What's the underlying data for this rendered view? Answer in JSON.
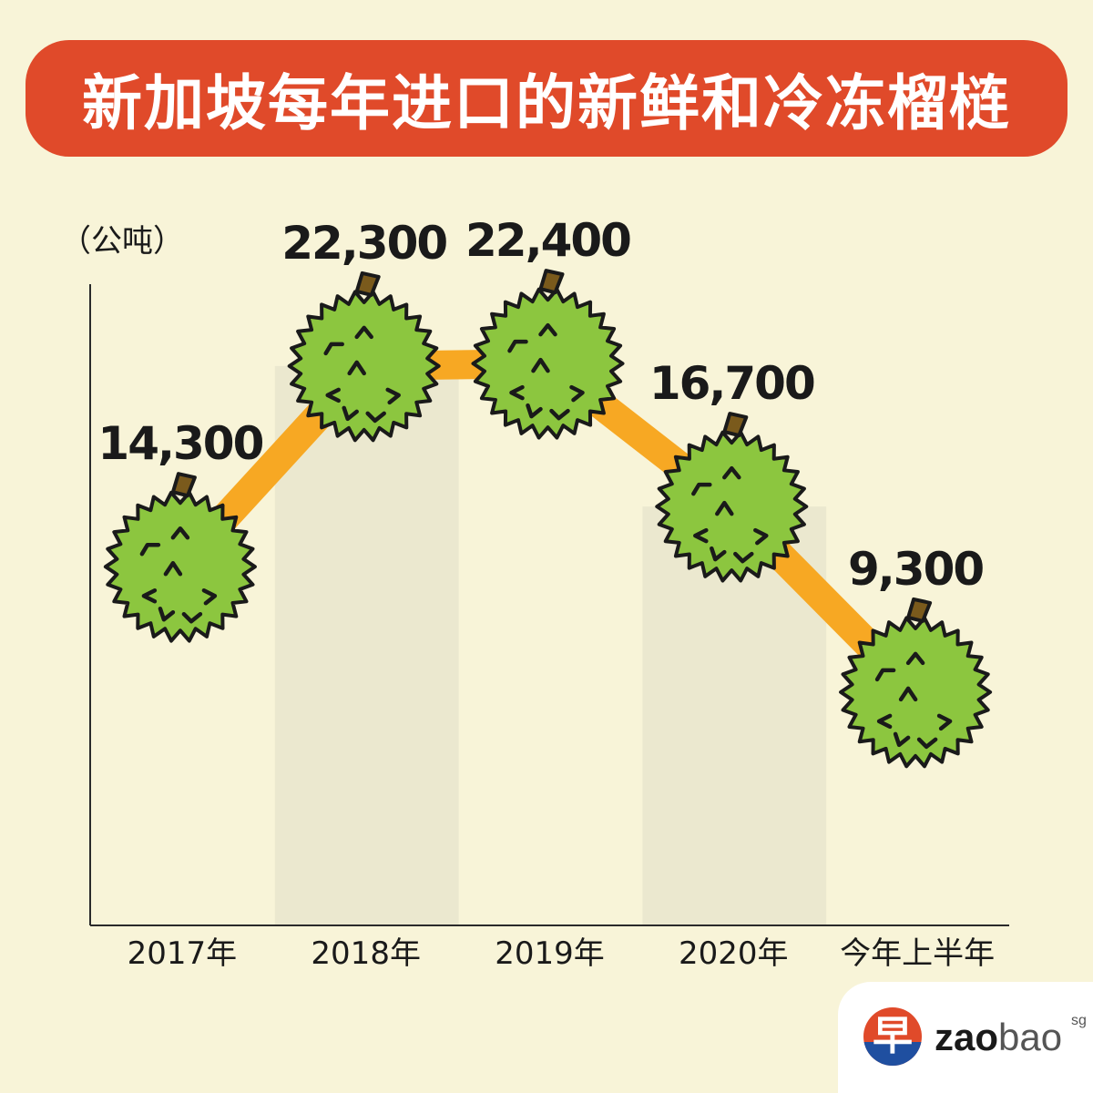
{
  "title": "新加坡每年进口的新鲜和冷冻榴梿",
  "chart_data": {
    "type": "line",
    "title": "新加坡每年进口的新鲜和冷冻榴梿",
    "ylabel": "（公吨）",
    "xlabel": "",
    "categories": [
      "2017年",
      "2018年",
      "2019年",
      "2020年",
      "今年上半年"
    ],
    "values": [
      14300,
      22300,
      22400,
      16700,
      9300
    ],
    "value_labels": [
      "14,300",
      "22,300",
      "22,400",
      "16,700",
      "9,300"
    ],
    "ylim": [
      0,
      26000
    ],
    "grid": false,
    "marker": "durian-icon",
    "colors": {
      "line": "#f7a823",
      "marker": "#8cc63f",
      "banner": "#e04a2a",
      "background": "#f8f4d8",
      "band": "#ebe8cf"
    }
  },
  "logo": {
    "glyph": "早",
    "zao": "zao",
    "bao": "bao",
    "sg": "sg"
  }
}
